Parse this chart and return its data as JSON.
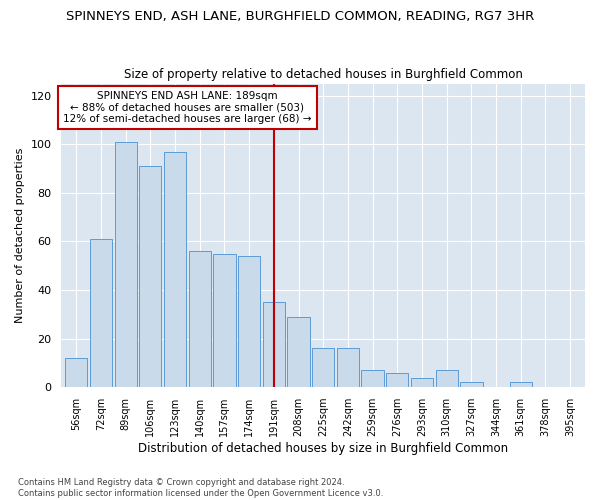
{
  "title": "SPINNEYS END, ASH LANE, BURGHFIELD COMMON, READING, RG7 3HR",
  "subtitle": "Size of property relative to detached houses in Burghfield Common",
  "xlabel": "Distribution of detached houses by size in Burghfield Common",
  "ylabel": "Number of detached properties",
  "categories": [
    "56sqm",
    "72sqm",
    "89sqm",
    "106sqm",
    "123sqm",
    "140sqm",
    "157sqm",
    "174sqm",
    "191sqm",
    "208sqm",
    "225sqm",
    "242sqm",
    "259sqm",
    "276sqm",
    "293sqm",
    "310sqm",
    "327sqm",
    "344sqm",
    "361sqm",
    "378sqm",
    "395sqm"
  ],
  "values": [
    12,
    61,
    101,
    91,
    97,
    56,
    55,
    54,
    35,
    29,
    16,
    16,
    7,
    6,
    4,
    7,
    2,
    0,
    2,
    0,
    0
  ],
  "bar_color": "#c9daea",
  "bar_edge_color": "#5b9bd5",
  "highlight_index": 8,
  "highlight_color": "#c00000",
  "annotation_text": "SPINNEYS END ASH LANE: 189sqm\n← 88% of detached houses are smaller (503)\n12% of semi-detached houses are larger (68) →",
  "ylim": [
    0,
    125
  ],
  "yticks": [
    0,
    20,
    40,
    60,
    80,
    100,
    120
  ],
  "grid_color": "#ffffff",
  "bg_color": "#dce6f1",
  "footnote": "Contains HM Land Registry data © Crown copyright and database right 2024.\nContains public sector information licensed under the Open Government Licence v3.0.",
  "title_fontsize": 9.5,
  "subtitle_fontsize": 8.5,
  "xlabel_fontsize": 8.5,
  "ylabel_fontsize": 8
}
